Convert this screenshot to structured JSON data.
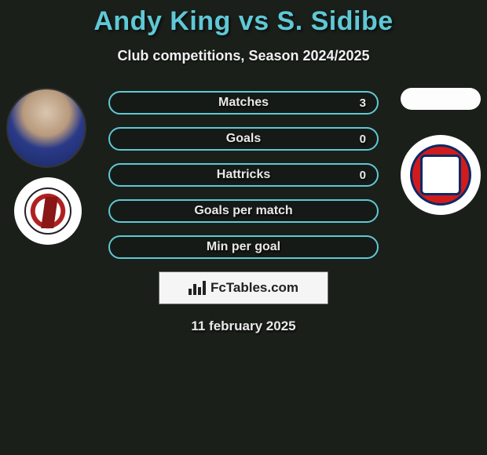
{
  "title": "Andy King vs S. Sidibe",
  "subtitle": "Club competitions, Season 2024/2025",
  "stats": [
    {
      "label": "Matches",
      "value": "3"
    },
    {
      "label": "Goals",
      "value": "0"
    },
    {
      "label": "Hattricks",
      "value": "0"
    },
    {
      "label": "Goals per match",
      "value": ""
    },
    {
      "label": "Min per goal",
      "value": ""
    }
  ],
  "watermark": "FcTables.com",
  "date": "11 february 2025",
  "colors": {
    "accent": "#5fc8d6",
    "background": "#1a1f1a",
    "text": "#e8e8e8"
  },
  "left_player": "Andy King",
  "right_player": "S. Sidibe",
  "left_club": "Bristol City",
  "right_club": "Stoke City"
}
